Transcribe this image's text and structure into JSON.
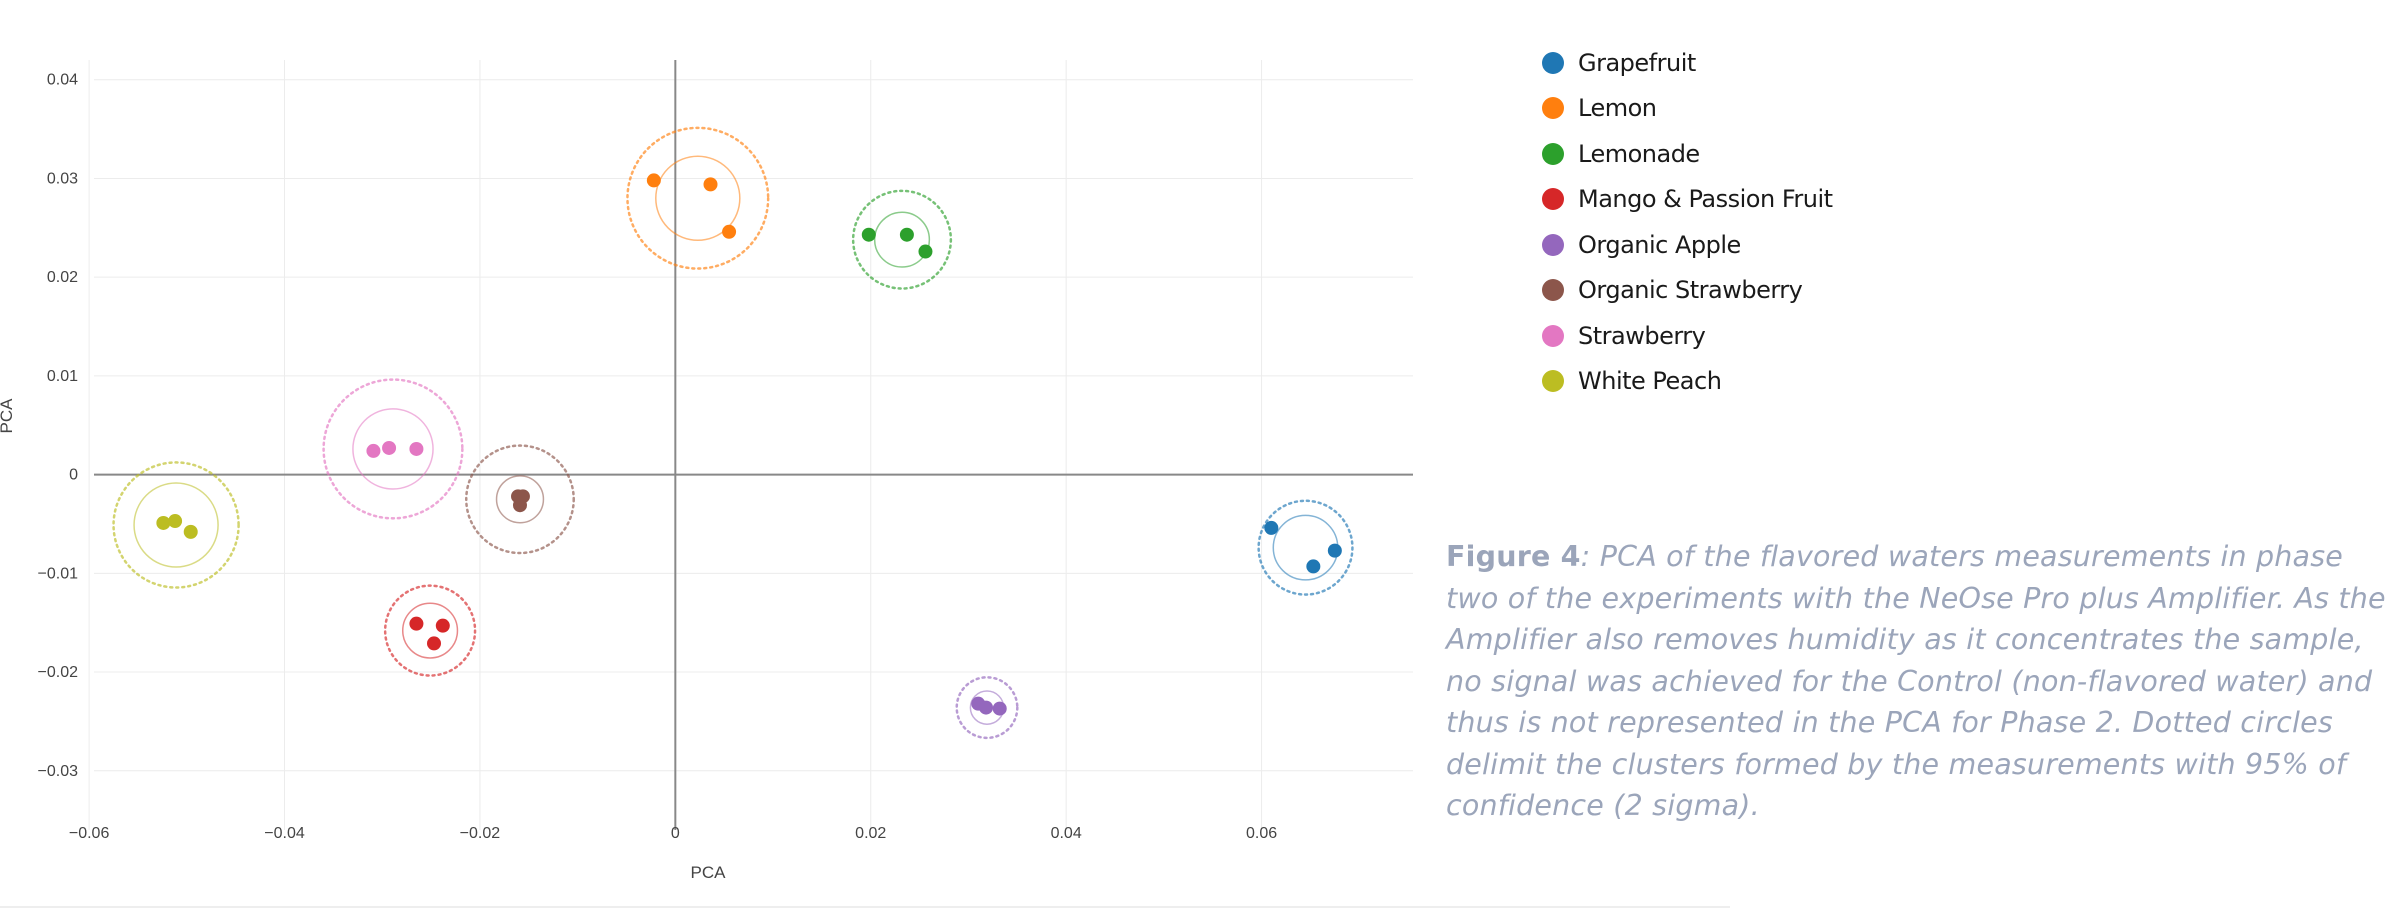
{
  "chart_data": {
    "type": "scatter",
    "title": "",
    "xlabel": "PCA",
    "ylabel": "PCA",
    "xlim": [
      -0.0595,
      0.0755
    ],
    "ylim": [
      -0.036,
      0.042
    ],
    "x_ticks": [
      -0.06,
      -0.04,
      -0.02,
      0,
      0.02,
      0.04,
      0.06
    ],
    "x_tick_labels": [
      "−0.06",
      "−0.04",
      "−0.02",
      "0",
      "0.02",
      "0.04",
      "0.06"
    ],
    "y_ticks": [
      0.04,
      0.03,
      0.02,
      0.01,
      0,
      -0.01,
      -0.02,
      -0.03
    ],
    "y_tick_labels": [
      "0.04",
      "0.03",
      "0.02",
      "0.01",
      "0",
      "−0.01",
      "−0.02",
      "−0.03"
    ],
    "grid": true,
    "legend_position": "right",
    "series": [
      {
        "name": "Grapefruit",
        "color": "#1f77b4",
        "points": [
          [
            0.061,
            -0.0054
          ],
          [
            0.0675,
            -0.0077
          ],
          [
            0.0653,
            -0.0093
          ]
        ],
        "center": [
          0.0645,
          -0.0074
        ],
        "inner_radius": 0.0033,
        "outer_radius": 0.0048
      },
      {
        "name": "Lemon",
        "color": "#ff7f0e",
        "points": [
          [
            -0.0022,
            0.0298
          ],
          [
            0.0036,
            0.0294
          ],
          [
            0.0055,
            0.0246
          ]
        ],
        "center": [
          0.0023,
          0.028
        ],
        "inner_radius": 0.0043,
        "outer_radius": 0.0072
      },
      {
        "name": "Lemonade",
        "color": "#2ca02c",
        "points": [
          [
            0.0198,
            0.0243
          ],
          [
            0.0237,
            0.0243
          ],
          [
            0.0256,
            0.0226
          ]
        ],
        "center": [
          0.0232,
          0.0238
        ],
        "inner_radius": 0.0028,
        "outer_radius": 0.005
      },
      {
        "name": "Mango & Passion Fruit",
        "color": "#d62728",
        "points": [
          [
            -0.0265,
            -0.0151
          ],
          [
            -0.0238,
            -0.0153
          ],
          [
            -0.0247,
            -0.0171
          ]
        ],
        "center": [
          -0.0251,
          -0.0158
        ],
        "inner_radius": 0.0028,
        "outer_radius": 0.0046
      },
      {
        "name": "Organic Apple",
        "color": "#9467bd",
        "points": [
          [
            0.031,
            -0.0232
          ],
          [
            0.0318,
            -0.0236
          ],
          [
            0.0332,
            -0.0237
          ]
        ],
        "center": [
          0.0319,
          -0.0236
        ],
        "inner_radius": 0.0017,
        "outer_radius": 0.0031
      },
      {
        "name": "Organic Strawberry",
        "color": "#8c564b",
        "points": [
          [
            -0.0161,
            -0.0022
          ],
          [
            -0.0156,
            -0.0022
          ],
          [
            -0.0159,
            -0.0031
          ]
        ],
        "center": [
          -0.0159,
          -0.0025
        ],
        "inner_radius": 0.0024,
        "outer_radius": 0.0055
      },
      {
        "name": "Strawberry",
        "color": "#e377c2",
        "points": [
          [
            -0.0309,
            0.0024
          ],
          [
            -0.0293,
            0.0027
          ],
          [
            -0.0265,
            0.0026
          ]
        ],
        "center": [
          -0.0289,
          0.0026
        ],
        "inner_radius": 0.0041,
        "outer_radius": 0.0071
      },
      {
        "name": "White Peach",
        "color": "#bcbd22",
        "points": [
          [
            -0.0524,
            -0.0049
          ],
          [
            -0.0512,
            -0.0047
          ],
          [
            -0.0496,
            -0.0058
          ]
        ],
        "center": [
          -0.0511,
          -0.0051
        ],
        "inner_radius": 0.0043,
        "outer_radius": 0.0064
      }
    ]
  },
  "caption": {
    "label": "Figure 4",
    "text": ": PCA of the flavored waters measurements in phase two of the experiments with the NeOse Pro plus Amplifier. As the Amplifier also removes humidity as it concentrates the sample, no signal was achieved for the Control (non-flavored water) and thus is not represented in the PCA for Phase 2. Dotted circles delimit the clusters formed by the measurements with 95% of confidence (2 sigma)."
  }
}
